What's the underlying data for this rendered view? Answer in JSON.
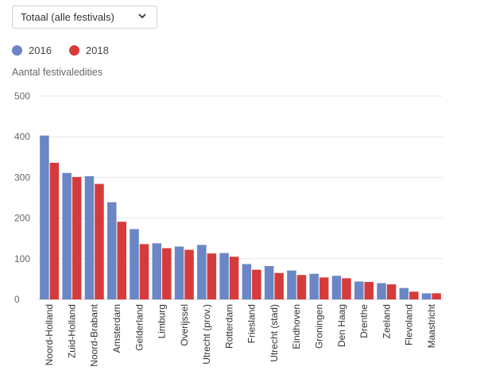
{
  "filter": {
    "selected": "Totaal (alle festivals)",
    "icon": "chevron-down-icon"
  },
  "colors": {
    "series_2016": "#6a86c5",
    "series_2018": "#d63b3b",
    "grid": "#e6e6e6"
  },
  "chart_data": {
    "type": "bar",
    "ylabel": "Aantal festivaledities",
    "xlabel": "",
    "ylim": [
      0,
      500
    ],
    "yticks": [
      0,
      100,
      200,
      300,
      400,
      500
    ],
    "grid": true,
    "legend": "top-left",
    "categories": [
      "Noord-Holland",
      "Zuid-Holland",
      "Noord-Brabant",
      "Amsterdam",
      "Gelderland",
      "Limburg",
      "Overijssel",
      "Utrecht (prov.)",
      "Rotterdam",
      "Friesland",
      "Utrecht (stad)",
      "Eindhoven",
      "Groningen",
      "Den Haag",
      "Drenthe",
      "Zeeland",
      "Flevoland",
      "Maastricht"
    ],
    "series": [
      {
        "name": "2016",
        "values": [
          403,
          311,
          303,
          239,
          173,
          138,
          130,
          134,
          114,
          87,
          82,
          71,
          63,
          58,
          44,
          40,
          28,
          15
        ]
      },
      {
        "name": "2018",
        "values": [
          336,
          301,
          284,
          191,
          136,
          126,
          122,
          113,
          105,
          73,
          65,
          60,
          54,
          52,
          43,
          37,
          19,
          15
        ]
      }
    ]
  }
}
